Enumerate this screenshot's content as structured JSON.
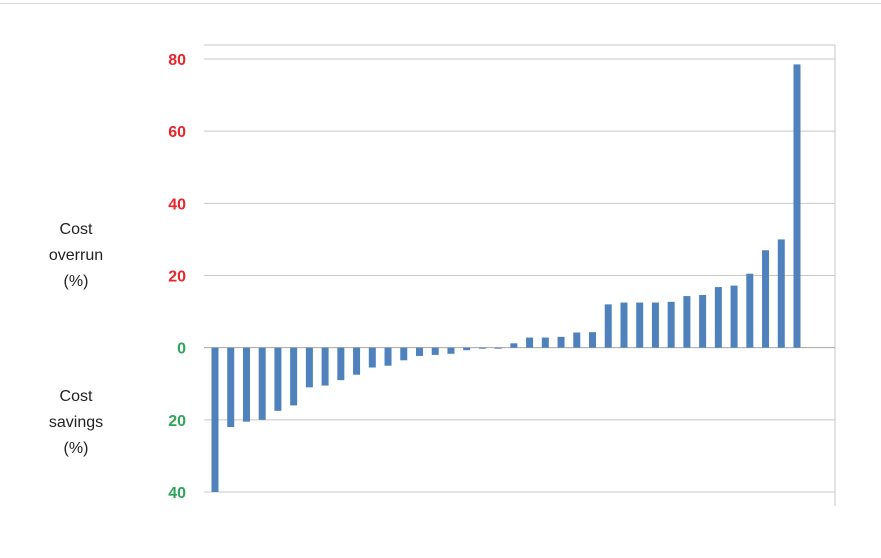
{
  "chart_data": {
    "type": "bar",
    "title": "",
    "xlabel": "",
    "ylabel_upper": [
      "Cost",
      "overrun",
      "(%)"
    ],
    "ylabel_lower": [
      "Cost",
      "savings",
      "(%)"
    ],
    "ylim": [
      -40,
      80
    ],
    "y_ticks": [
      {
        "value": 80,
        "label": "80",
        "color": "#e8262b"
      },
      {
        "value": 60,
        "label": "60",
        "color": "#e8262b"
      },
      {
        "value": 40,
        "label": "40",
        "color": "#e8262b"
      },
      {
        "value": 20,
        "label": "20",
        "color": "#e8262b"
      },
      {
        "value": 0,
        "label": "0",
        "color": "#2ea65a"
      },
      {
        "value": -20,
        "label": "20",
        "color": "#2ea65a"
      },
      {
        "value": -40,
        "label": "40",
        "color": "#2ea65a"
      }
    ],
    "grid": true,
    "bar_color": "#4f81bd",
    "values": [
      -40,
      -22,
      -20.5,
      -20,
      -17.5,
      -16,
      -11,
      -10.5,
      -9,
      -7.5,
      -5.5,
      -5,
      -3.5,
      -2.3,
      -2,
      -1.7,
      -0.7,
      -0.2,
      -0.1,
      1.2,
      2.8,
      2.8,
      3,
      4.2,
      4.3,
      12,
      12.5,
      12.5,
      12.5,
      12.7,
      14.3,
      14.6,
      16.8,
      17.2,
      20.5,
      27,
      30,
      78.5
    ]
  }
}
